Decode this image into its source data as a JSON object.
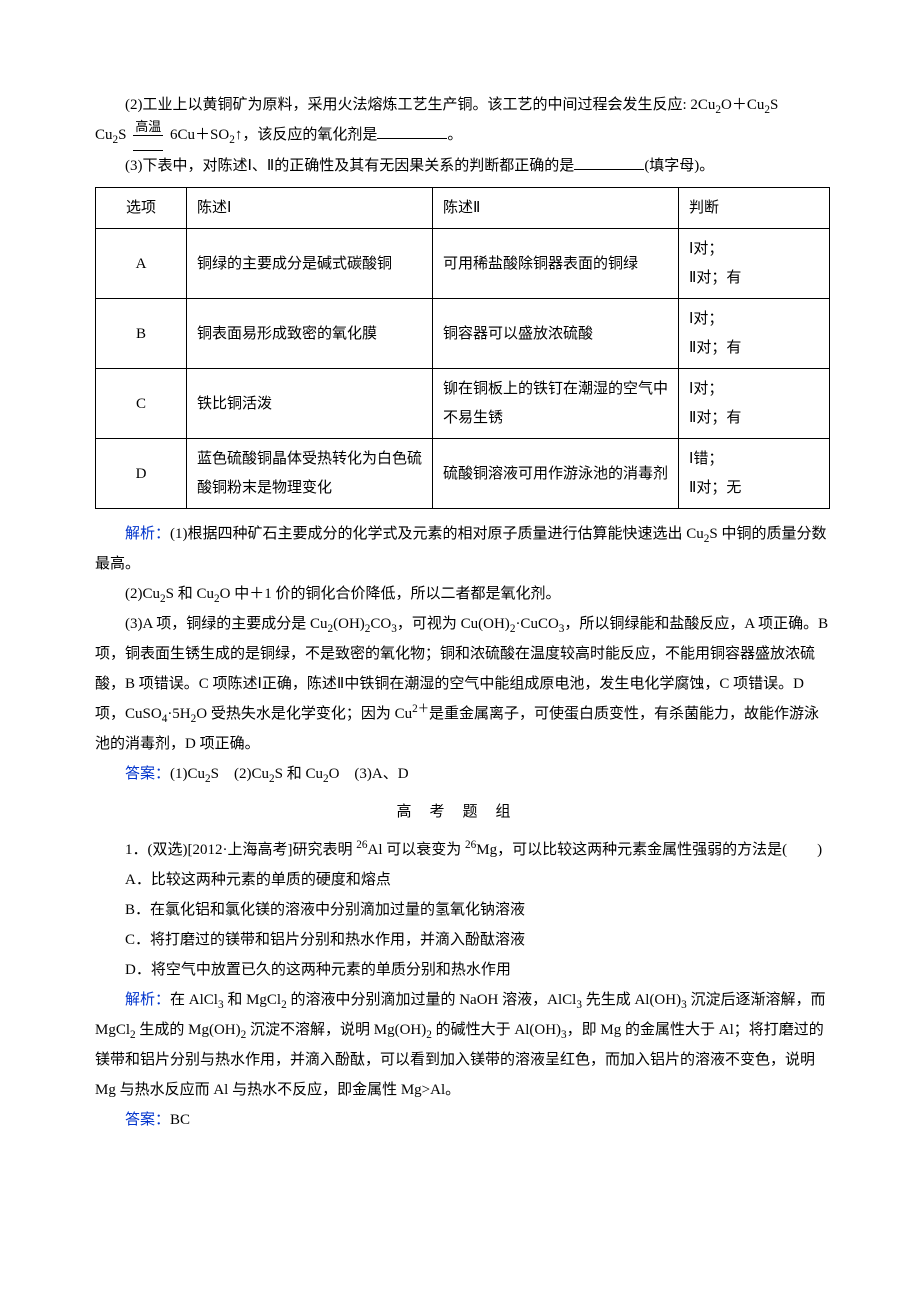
{
  "q2": {
    "line1_part1": "(2)工业上以黄铜矿为原料，采用火法熔炼工艺生产铜。该工艺的中间过程会发生反应: 2Cu",
    "line1_part2": "O＋Cu",
    "line1_part3": "S",
    "reaction_top": "高温",
    "reaction_bot": "　",
    "line2_part1": " 6Cu＋SO",
    "line2_part2": "↑，该反应的氧化剂是",
    "line2_part3": "。"
  },
  "q3_intro": "(3)下表中，对陈述Ⅰ、Ⅱ的正确性及其有无因果关系的判断都正确的是",
  "q3_tail": "(填字母)。",
  "table": {
    "headers": [
      "选项",
      "陈述Ⅰ",
      "陈述Ⅱ",
      "判断"
    ],
    "rows": [
      {
        "opt": "A",
        "s1": "铜绿的主要成分是碱式碳酸铜",
        "s2": "可用稀盐酸除铜器表面的铜绿",
        "j1": "Ⅰ对；",
        "j2": "Ⅱ对；有"
      },
      {
        "opt": "B",
        "s1": "铜表面易形成致密的氧化膜",
        "s2": "铜容器可以盛放浓硫酸",
        "j1": "Ⅰ对；",
        "j2": "Ⅱ对；有"
      },
      {
        "opt": "C",
        "s1": "铁比铜活泼",
        "s2": "铆在铜板上的铁钉在潮湿的空气中不易生锈",
        "j1": "Ⅰ对；",
        "j2": "Ⅱ对；有"
      },
      {
        "opt": "D",
        "s1": "蓝色硫酸铜晶体受热转化为白色硫酸铜粉末是物理变化",
        "s2": "硫酸铜溶液可用作游泳池的消毒剂",
        "j1": "Ⅰ错；",
        "j2": "Ⅱ对；无"
      }
    ]
  },
  "analysis_label": "解析：",
  "analysis1_a": "(1)根据四种矿石主要成分的化学式及元素的相对原子质量进行估算能快速选出 Cu",
  "analysis1_b": "S 中铜的质量分数最高。",
  "analysis2_a": "(2)Cu",
  "analysis2_b": "S 和 Cu",
  "analysis2_c": "O 中＋1 价的铜化合价降低，所以二者都是氧化剂。",
  "analysis3_a": "(3)A 项，铜绿的主要成分是 Cu",
  "analysis3_b": "(OH)",
  "analysis3_c": "CO",
  "analysis3_d": "，可视为 Cu(OH)",
  "analysis3_e": "·CuCO",
  "analysis3_f": "，所以铜绿能和盐酸反应，A 项正确。B 项，铜表面生锈生成的是铜绿，不是致密的氧化物；铜和浓硫酸在温度较高时能反应，不能用铜容器盛放浓硫酸，B 项错误。C 项陈述Ⅰ正确，陈述Ⅱ中铁铜在潮湿的空气中能组成原电池，发生电化学腐蚀，C 项错误。D 项，CuSO",
  "analysis3_g": "·5H",
  "analysis3_h": "O 受热失水是化学变化；因为 Cu",
  "analysis3_i": "是重金属离子，可使蛋白质变性，有杀菌能力，故能作游泳池的消毒剂，D 项正确。",
  "answer_label": "答案：",
  "answer1_a": "(1)Cu",
  "answer1_b": "S　(2)Cu",
  "answer1_c": "S 和 Cu",
  "answer1_d": "O　(3)A、D",
  "section_title": "高考题组",
  "p1": {
    "stem_a": "1．(双选)[2012·上海高考]研究表明 ",
    "stem_b": "Al 可以衰变为 ",
    "stem_c": "Mg，可以比较这两种元素金属性强弱的方法是(　　)",
    "optA": "A．比较这两种元素的单质的硬度和熔点",
    "optB": "B．在氯化铝和氯化镁的溶液中分别滴加过量的氢氧化钠溶液",
    "optC": "C．将打磨过的镁带和铝片分别和热水作用，并滴入酚酞溶液",
    "optD": "D．将空气中放置已久的这两种元素的单质分别和热水作用"
  },
  "p1_analysis_a": "在 AlCl",
  "p1_analysis_b": " 和 MgCl",
  "p1_analysis_c": " 的溶液中分别滴加过量的 NaOH 溶液，AlCl",
  "p1_analysis_d": " 先生成 Al(OH)",
  "p1_analysis_e": " 沉淀后逐渐溶解，而 MgCl",
  "p1_analysis_f": " 生成的 Mg(OH)",
  "p1_analysis_g": " 沉淀不溶解，说明 Mg(OH)",
  "p1_analysis_h": " 的碱性大于 Al(OH)",
  "p1_analysis_i": "，即 Mg 的金属性大于 Al；将打磨过的镁带和铝片分别与热水作用，并滴入酚酞，可以看到加入镁带的溶液呈红色，而加入铝片的溶液不变色，说明 Mg 与热水反应而 Al 与热水不反应，即金属性 Mg>Al。",
  "p1_answer": "BC"
}
